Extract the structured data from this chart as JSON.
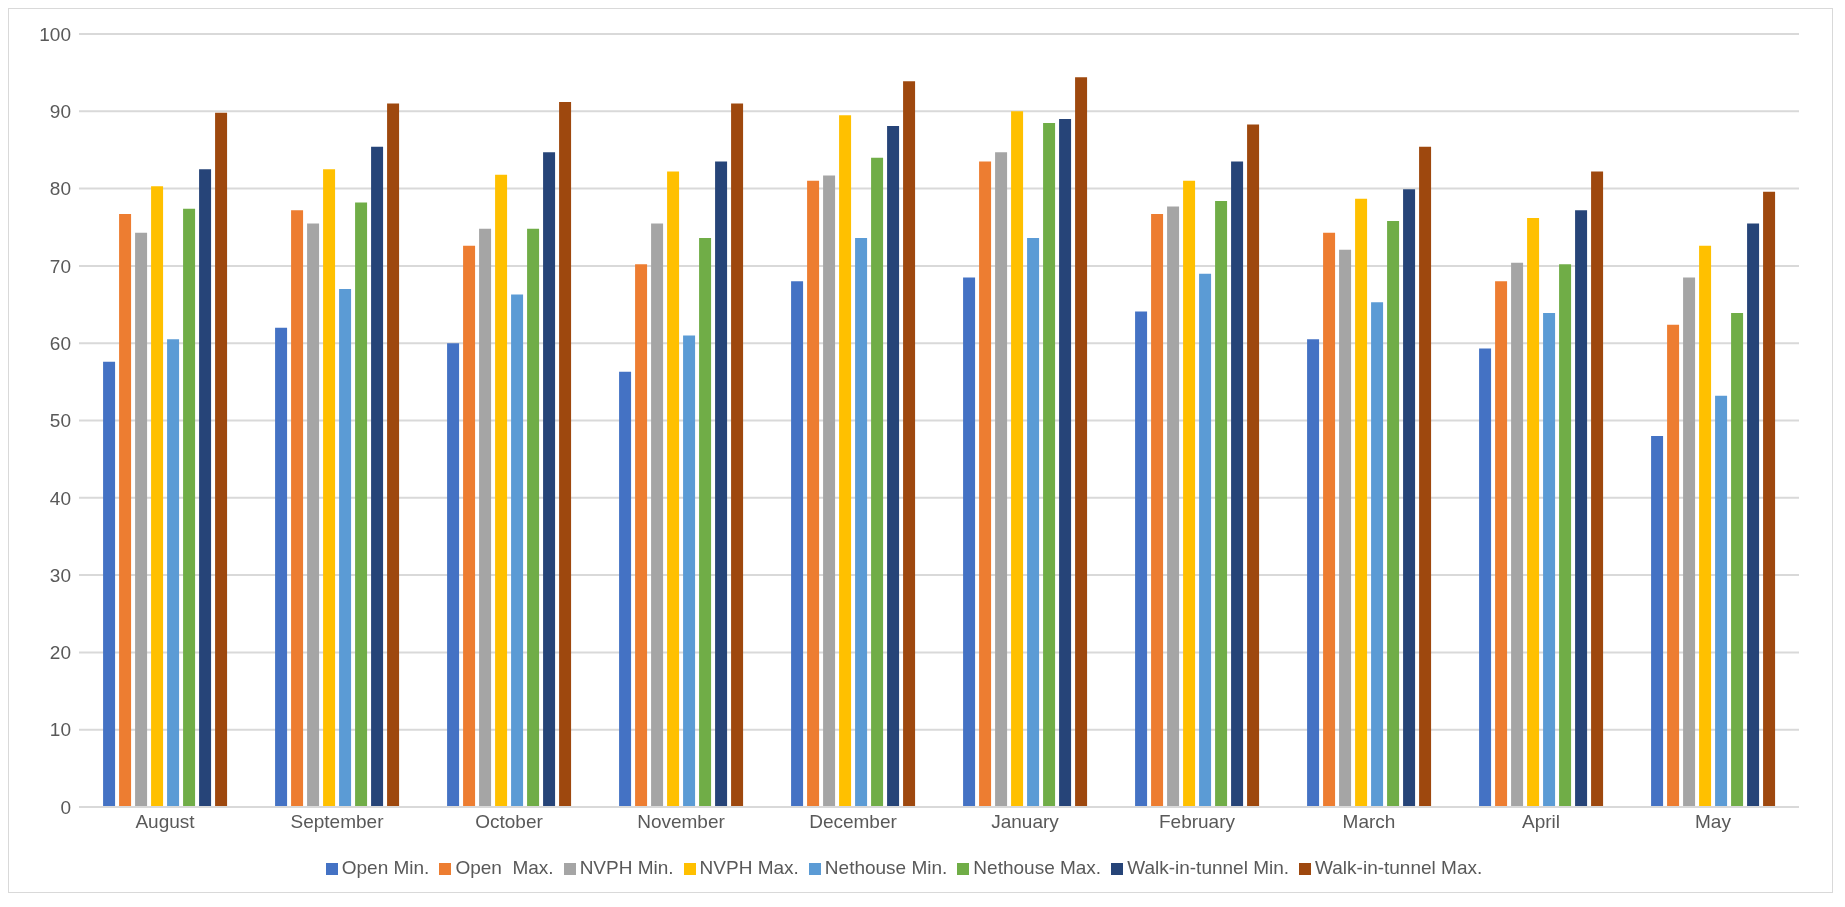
{
  "chart_data": {
    "type": "bar",
    "categories": [
      "August",
      "September",
      "October",
      "November",
      "December",
      "January",
      "February",
      "March",
      "April",
      "May"
    ],
    "series": [
      {
        "name": "Open Min.",
        "color": "#4472c4",
        "values": [
          57.6,
          62,
          60,
          56.3,
          68,
          68.5,
          64.1,
          60.5,
          59.3,
          48
        ]
      },
      {
        "name": "Open  Max.",
        "color": "#ed7d31",
        "values": [
          76.7,
          77.2,
          72.6,
          70.2,
          81,
          83.5,
          76.7,
          74.3,
          68,
          62.4
        ]
      },
      {
        "name": "NVPH Min.",
        "color": "#a5a5a5",
        "values": [
          74.3,
          75.5,
          74.8,
          75.5,
          81.7,
          84.7,
          77.7,
          72.1,
          70.4,
          68.5
        ]
      },
      {
        "name": "NVPH Max.",
        "color": "#ffc000",
        "values": [
          80.3,
          82.5,
          81.8,
          82.2,
          89.5,
          90,
          81,
          78.7,
          76.2,
          72.6
        ]
      },
      {
        "name": "Nethouse Min.",
        "color": "#5b9bd5",
        "values": [
          60.5,
          67,
          66.3,
          61,
          73.6,
          73.6,
          69,
          65.3,
          63.9,
          53.2
        ]
      },
      {
        "name": "Nethouse Max.",
        "color": "#70ad47",
        "values": [
          77.4,
          78.2,
          74.8,
          73.6,
          84,
          88.5,
          78.4,
          75.8,
          70.2,
          63.9
        ]
      },
      {
        "name": "Walk-in-tunnel Min.",
        "color": "#264478",
        "values": [
          82.5,
          85.4,
          84.7,
          83.5,
          88.1,
          89,
          83.5,
          79.9,
          77.2,
          75.5
        ]
      },
      {
        "name": "Walk-in-tunnel Max.",
        "color": "#9e480e",
        "values": [
          89.8,
          91,
          91.2,
          91,
          93.9,
          94.4,
          88.3,
          85.4,
          82.2,
          79.6
        ]
      }
    ],
    "ylim": [
      0,
      100
    ],
    "yticks": [
      0,
      10,
      20,
      30,
      40,
      50,
      60,
      70,
      80,
      90,
      100
    ],
    "grid": "y",
    "legend": "bottom"
  }
}
